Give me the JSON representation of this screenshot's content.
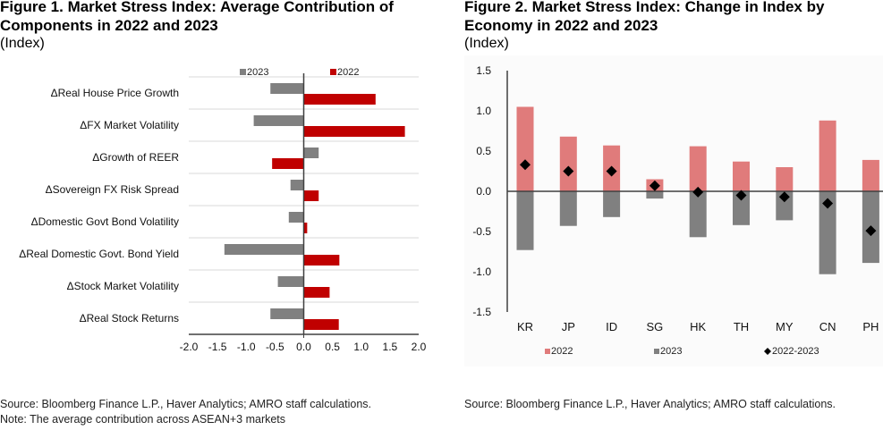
{
  "colors": {
    "fig1_2022": "#c00000",
    "fig1_2023": "#808080",
    "fig2_2022": "#e07b7b",
    "fig2_2023": "#808080",
    "diamond": "#000000",
    "axis": "#404040",
    "grid": "#d9d9d9"
  },
  "figure1": {
    "title_line1": "Figure 1. Market Stress Index: Average Contribution of",
    "title_line2": "Components in 2022 and 2023",
    "unit": "(Index)",
    "source": "Source: Bloomberg Finance L.P., Haver Analytics; AMRO staff calculations.",
    "note": "Note: The average contribution across ASEAN+3 markets"
  },
  "figure2": {
    "title_line1": "Figure 2. Market Stress Index: Change in Index by",
    "title_line2": "Economy in 2022 and 2023",
    "unit": "(Index)",
    "source": "Source: Bloomberg Finance L.P., Haver Analytics; AMRO staff calculations."
  },
  "chart_data": [
    {
      "type": "bar",
      "orientation": "horizontal",
      "title": "Figure 1. Market Stress Index: Average Contribution of Components in 2022 and 2023",
      "ylabel": "(Index)",
      "categories": [
        "ΔReal House Price Growth",
        "ΔFX Market Volatility",
        "ΔGrowth of REER",
        "ΔSovereign FX Risk Spread",
        "ΔDomestic Govt Bond Volatility",
        "ΔReal Domestic Govt. Bond Yield",
        "ΔStock Market Volatility",
        "ΔReal Stock Returns"
      ],
      "series": [
        {
          "name": "2023",
          "values": [
            -0.58,
            -0.87,
            0.26,
            -0.23,
            -0.26,
            -1.38,
            -0.45,
            -0.58
          ]
        },
        {
          "name": "2022",
          "values": [
            1.25,
            1.76,
            -0.55,
            0.26,
            0.06,
            0.62,
            0.45,
            0.61
          ]
        }
      ],
      "xlim": [
        -2.0,
        2.0
      ],
      "xticks": [
        "-2.0",
        "-1.5",
        "-1.0",
        "-0.5",
        "0.0",
        "0.5",
        "1.0",
        "1.5",
        "2.0"
      ],
      "tickvals": [
        -2.0,
        -1.5,
        -1.0,
        -0.5,
        0.0,
        0.5,
        1.0,
        1.5,
        2.0
      ],
      "legend": [
        "2023",
        "2022"
      ],
      "legend_position": "top",
      "grid": true
    },
    {
      "type": "bar",
      "orientation": "vertical",
      "title": "Figure 2. Market Stress Index: Change in Index by Economy in 2022 and 2023",
      "ylabel": "(Index)",
      "categories": [
        "KR",
        "JP",
        "ID",
        "SG",
        "HK",
        "TH",
        "MY",
        "CN",
        "PH"
      ],
      "series": [
        {
          "name": "2022",
          "kind": "bar",
          "values": [
            1.05,
            0.68,
            0.57,
            0.15,
            0.56,
            0.37,
            0.3,
            0.88,
            0.39
          ]
        },
        {
          "name": "2023",
          "kind": "bar",
          "values": [
            -0.73,
            -0.43,
            -0.32,
            -0.09,
            -0.57,
            -0.42,
            -0.36,
            -1.03,
            -0.89
          ]
        },
        {
          "name": "2022-2023",
          "kind": "marker",
          "values": [
            0.33,
            0.25,
            0.25,
            0.07,
            -0.01,
            -0.05,
            -0.07,
            -0.15,
            -0.49
          ]
        }
      ],
      "ylim": [
        -1.5,
        1.5
      ],
      "yticks": [
        "1.5",
        "1.0",
        "0.5",
        "0.0",
        "-0.5",
        "-1.0",
        "-1.5"
      ],
      "tickvals": [
        1.5,
        1.0,
        0.5,
        0.0,
        -0.5,
        -1.0,
        -1.5
      ],
      "legend": [
        "2022",
        "2023",
        "2022-2023"
      ],
      "legend_position": "bottom",
      "grid": false
    }
  ]
}
